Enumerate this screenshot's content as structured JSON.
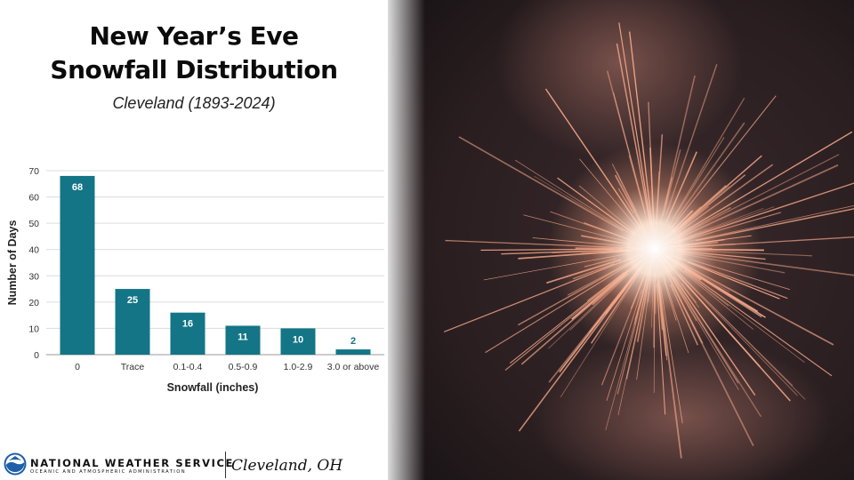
{
  "header": {
    "title_line1": "New Year’s Eve",
    "title_line2": "Snowfall Distribution",
    "subtitle": "Cleveland (1893-2024)"
  },
  "chart_data": {
    "type": "bar",
    "categories": [
      "0",
      "Trace",
      "0.1-0.4",
      "0.5-0.9",
      "1.0-2.9",
      "3.0 or above"
    ],
    "values": [
      68,
      25,
      16,
      11,
      10,
      2
    ],
    "xlabel": "Snowfall (inches)",
    "ylabel": "Number of Days",
    "ylim": [
      0,
      70
    ],
    "yticks": [
      0,
      10,
      20,
      30,
      40,
      50,
      60,
      70
    ],
    "grid": true,
    "bar_color": "#137586",
    "data_labels": true
  },
  "footer": {
    "org_name": "NATIONAL WEATHER SERVICE",
    "org_subtitle": "OCEANIC AND ATMOSPHERIC ADMINISTRATION",
    "office": "Cleveland, OH",
    "logo_icon": "noaa-logo"
  },
  "photo": {
    "subject_icon": "sparkler-photo",
    "background_color": "#2a1e20",
    "spark_color": "#f7a98a"
  }
}
